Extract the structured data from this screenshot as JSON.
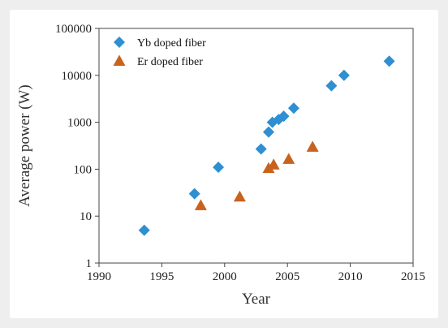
{
  "chart_data": {
    "type": "scatter",
    "xlabel": "Year",
    "ylabel": "Average power (W)",
    "xlim": [
      1990,
      2015
    ],
    "ylim": [
      1,
      100000
    ],
    "y_scale": "log",
    "x_ticks": [
      "1990",
      "1995",
      "2000",
      "2005",
      "2010",
      "2015"
    ],
    "y_ticks": [
      "1",
      "10",
      "100",
      "1000",
      "10000",
      "100000"
    ],
    "grid": false,
    "legend_position": "top-left",
    "series": [
      {
        "name": "Yb doped fiber",
        "marker": "diamond",
        "color": "#2e8fd1",
        "points": [
          {
            "x": 1993.6,
            "y": 5
          },
          {
            "x": 1997.6,
            "y": 30
          },
          {
            "x": 1999.5,
            "y": 110
          },
          {
            "x": 2002.9,
            "y": 270
          },
          {
            "x": 2003.5,
            "y": 620
          },
          {
            "x": 2003.8,
            "y": 1000
          },
          {
            "x": 2004.3,
            "y": 1150
          },
          {
            "x": 2004.7,
            "y": 1350
          },
          {
            "x": 2005.5,
            "y": 2000
          },
          {
            "x": 2008.5,
            "y": 6000
          },
          {
            "x": 2009.5,
            "y": 10000
          },
          {
            "x": 2013.1,
            "y": 20000
          }
        ]
      },
      {
        "name": "Er doped fiber",
        "marker": "triangle",
        "color": "#c8631e",
        "points": [
          {
            "x": 1998.1,
            "y": 17
          },
          {
            "x": 2001.2,
            "y": 26
          },
          {
            "x": 2003.5,
            "y": 105
          },
          {
            "x": 2003.9,
            "y": 125
          },
          {
            "x": 2005.1,
            "y": 165
          },
          {
            "x": 2007.0,
            "y": 300
          }
        ]
      }
    ]
  }
}
